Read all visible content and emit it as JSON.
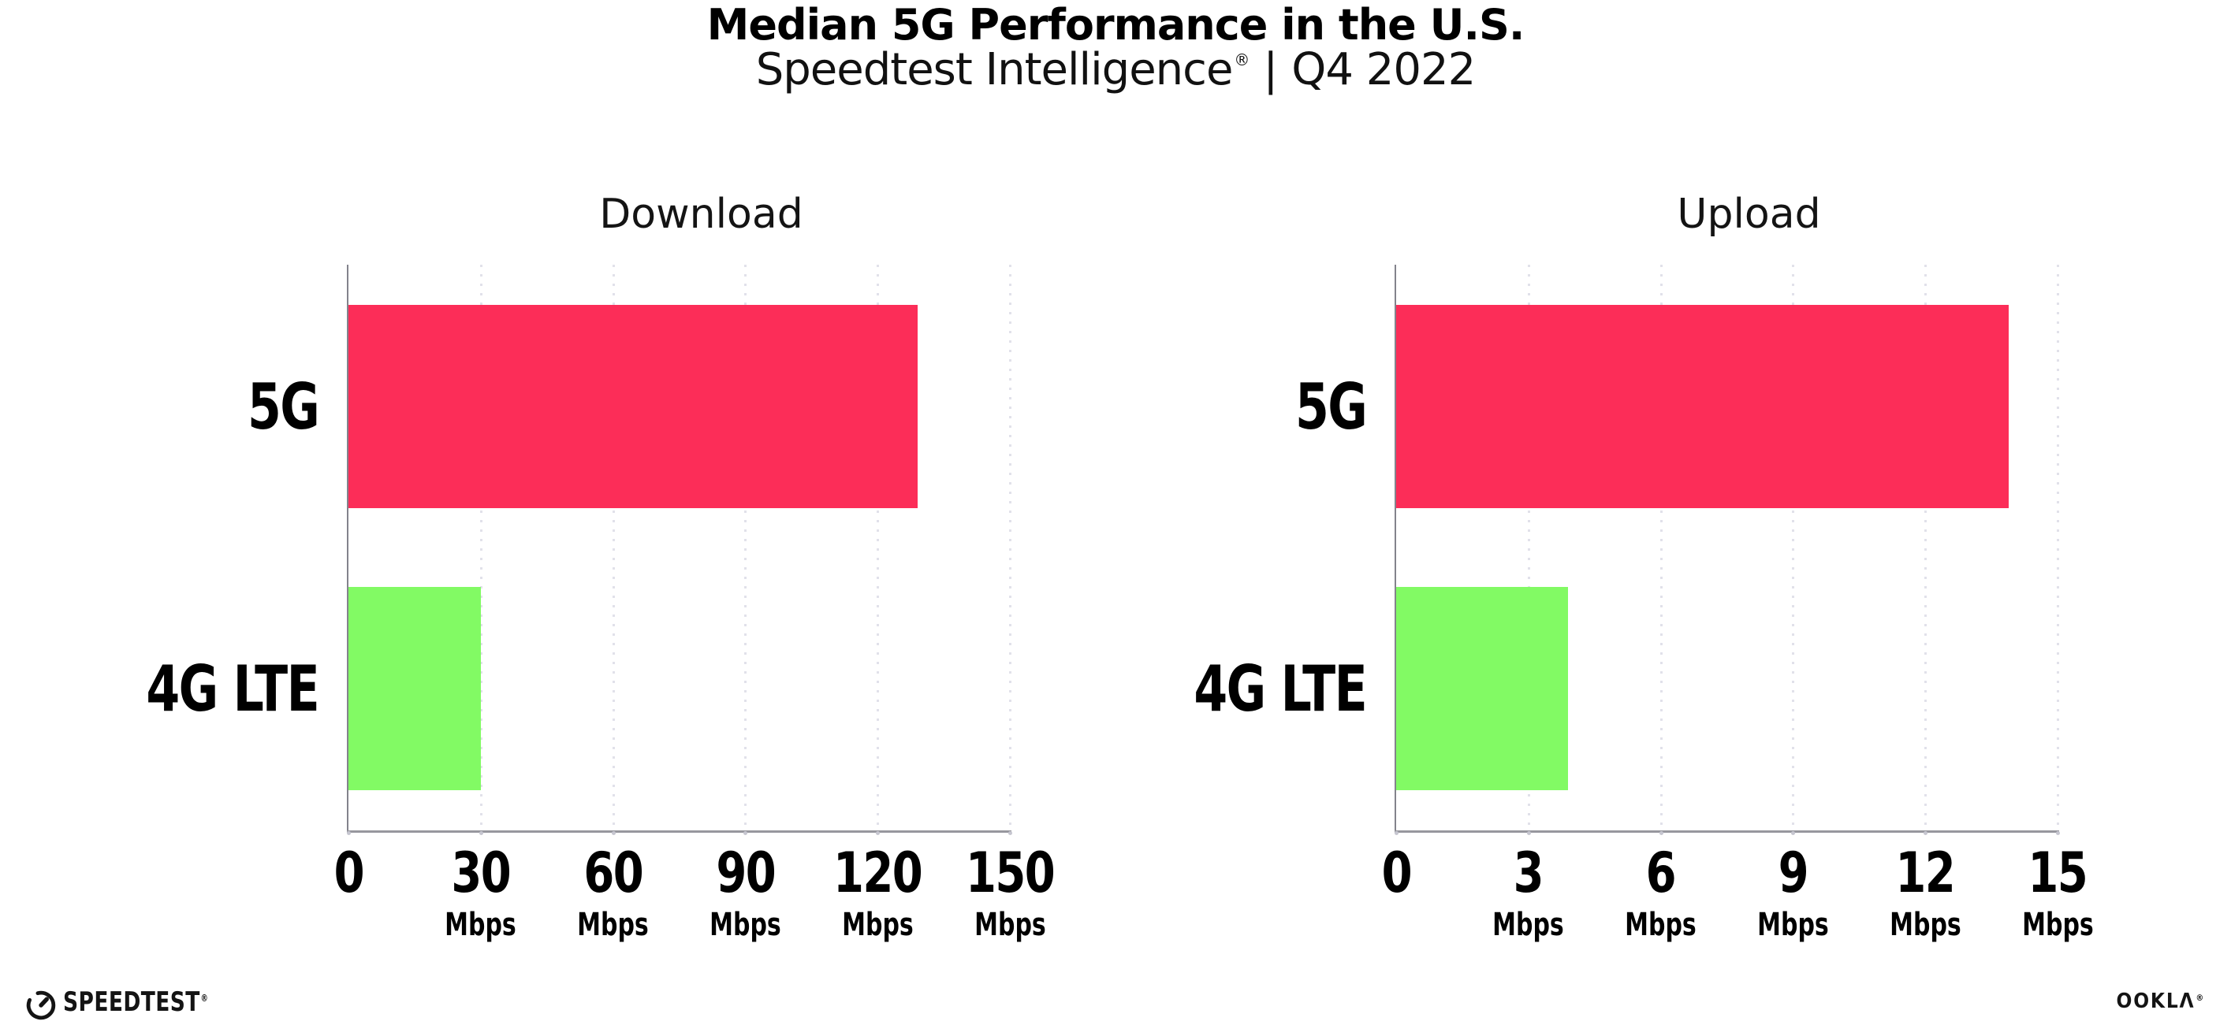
{
  "page": {
    "background": "#ffffff"
  },
  "header": {
    "title": "Median 5G Performance in the U.S.",
    "subtitle": {
      "brand": "Speedtest Intelligence",
      "mark": "®",
      "separator": "|",
      "period": "Q4 2022"
    }
  },
  "chart_data": [
    {
      "type": "bar",
      "orientation": "horizontal",
      "title": "Download",
      "categories": [
        "5G",
        "4G LTE"
      ],
      "values": [
        129,
        30
      ],
      "unit": "Mbps",
      "xlim": [
        0,
        150
      ],
      "xticks": [
        0,
        30,
        60,
        90,
        120,
        150
      ],
      "xtick_unit": "Mbps",
      "series_colors": [
        "#fc2d58",
        "#82fa64"
      ],
      "grid": "vertical-dotted",
      "legend": "none"
    },
    {
      "type": "bar",
      "orientation": "horizontal",
      "title": "Upload",
      "categories": [
        "5G",
        "4G LTE"
      ],
      "values": [
        13.9,
        3.9
      ],
      "unit": "Mbps",
      "xlim": [
        0,
        15
      ],
      "xticks": [
        0,
        3,
        6,
        9,
        12,
        15
      ],
      "xtick_unit": "Mbps",
      "series_colors": [
        "#fc2d58",
        "#82fa64"
      ],
      "grid": "vertical-dotted",
      "legend": "none"
    }
  ],
  "branding": {
    "speedtest": {
      "label": "SPEEDTEST",
      "mark": "®"
    },
    "ookla": {
      "label": "OOKLΛ",
      "mark": "®"
    }
  },
  "style": {
    "bar_color_5g": "#fc2d58",
    "bar_color_4g_lte": "#82fa64",
    "grid_color": "#e1e1ea",
    "axis_color": "#97979e",
    "text_color": "#000000"
  }
}
